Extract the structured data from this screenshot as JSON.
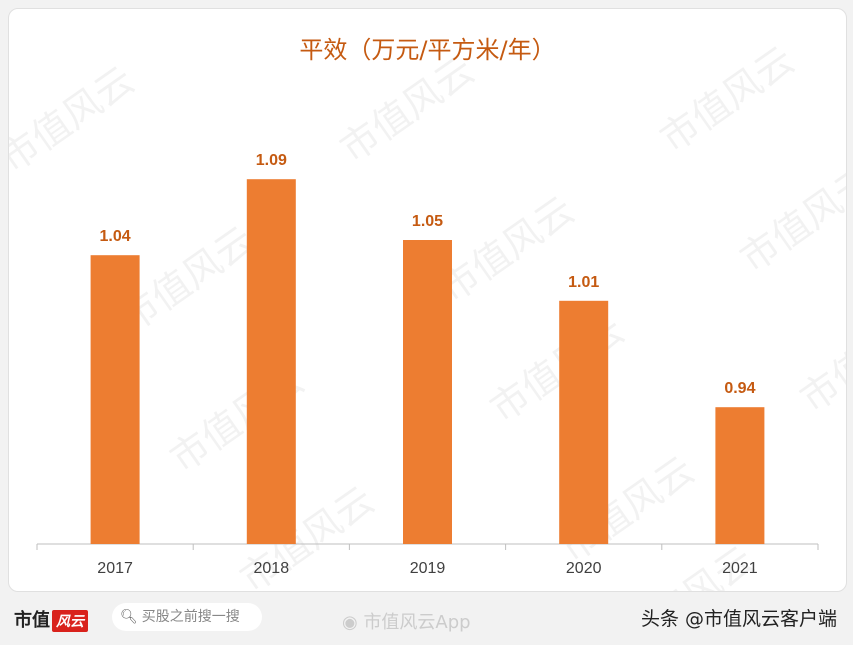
{
  "chart_data": {
    "type": "bar",
    "title": "平效（万元/平方米/年）",
    "categories": [
      "2017",
      "2018",
      "2019",
      "2020",
      "2021"
    ],
    "values": [
      1.04,
      1.09,
      1.05,
      1.01,
      0.94
    ],
    "data_labels": [
      "1.04",
      "1.09",
      "1.05",
      "1.01",
      "0.94"
    ],
    "ylim": [
      0.85,
      1.12
    ],
    "grid": false,
    "bar_color": "#ed7d31",
    "label_color": "#c55a11",
    "title_color": "#c55a11"
  },
  "watermark": "市值风云",
  "footer": {
    "logo_text": "市值",
    "logo_mark": "风云",
    "search_placeholder": "买股之前搜一搜",
    "weibo_text": "市值风云App",
    "toutiao_text": "头条 @市值风云客户端"
  }
}
